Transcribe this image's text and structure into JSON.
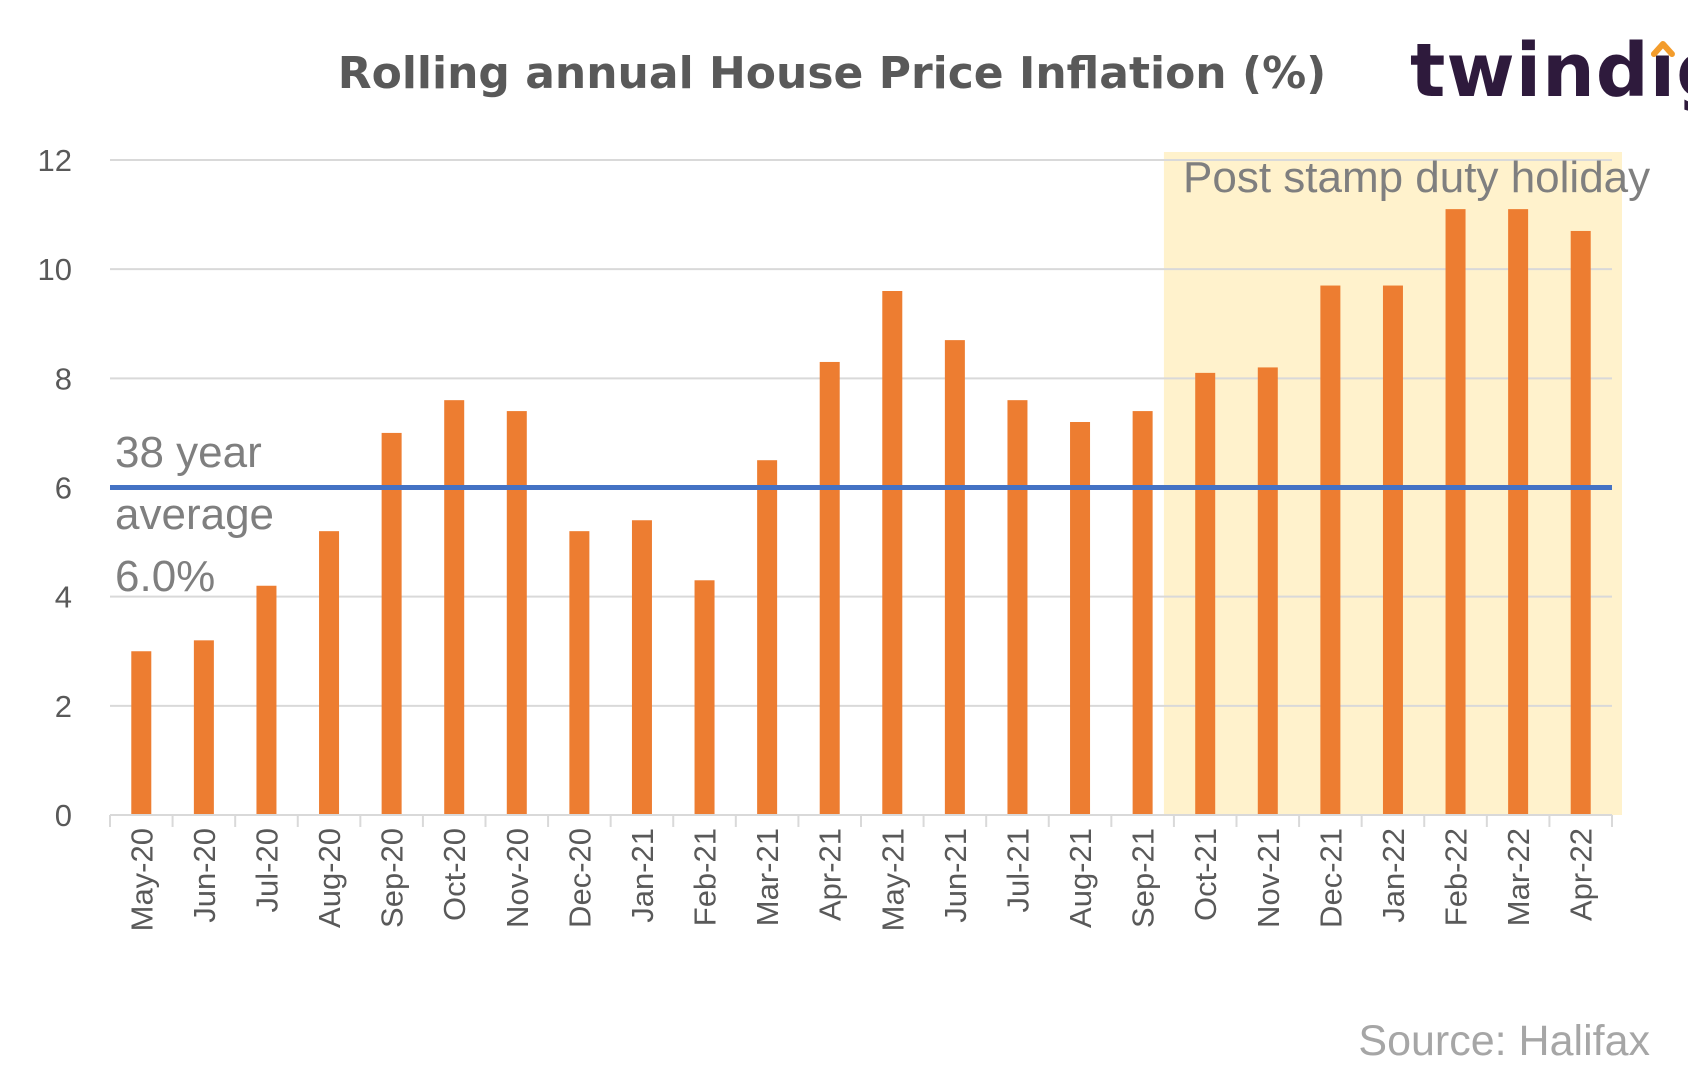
{
  "chart_data": {
    "type": "bar",
    "title": "Rolling annual House Price Inflation (%)",
    "categories": [
      "May-20",
      "Jun-20",
      "Jul-20",
      "Aug-20",
      "Sep-20",
      "Oct-20",
      "Nov-20",
      "Dec-20",
      "Jan-21",
      "Feb-21",
      "Mar-21",
      "Apr-21",
      "May-21",
      "Jun-21",
      "Jul-21",
      "Aug-21",
      "Sep-21",
      "Oct-21",
      "Nov-21",
      "Dec-21",
      "Jan-22",
      "Feb-22",
      "Mar-22",
      "Apr-22"
    ],
    "values": [
      3.0,
      3.2,
      4.2,
      5.2,
      7.0,
      7.6,
      7.4,
      5.2,
      5.4,
      4.3,
      6.5,
      8.3,
      9.6,
      8.7,
      7.6,
      7.2,
      7.4,
      8.1,
      8.2,
      9.7,
      9.7,
      11.1,
      11.1,
      10.7
    ],
    "ylim": [
      0,
      12
    ],
    "yticks": [
      0,
      2,
      4,
      6,
      8,
      10,
      12
    ],
    "grid": true,
    "legend": "none",
    "bar_color": "#ED7D31",
    "reference_line": {
      "value": 6.0,
      "color": "#4472C4",
      "label_lines": [
        "38 year",
        "average",
        "6.0%"
      ]
    },
    "highlight_region": {
      "from_category": "Oct-21",
      "to_category": "Apr-22",
      "label": "Post stamp duty holiday",
      "color": "#FFF2CC"
    }
  },
  "logo": {
    "text_before": "twind",
    "text_i": "ı",
    "text_after": "g",
    "text_color": "#2E1A3C",
    "accent_color": "#F39C2C"
  },
  "source": "Source: Halifax",
  "colors": {
    "title": "#595959",
    "axis_text": "#595959",
    "annotation_text": "#7F7F7F",
    "grid": "#D9D9D9"
  }
}
